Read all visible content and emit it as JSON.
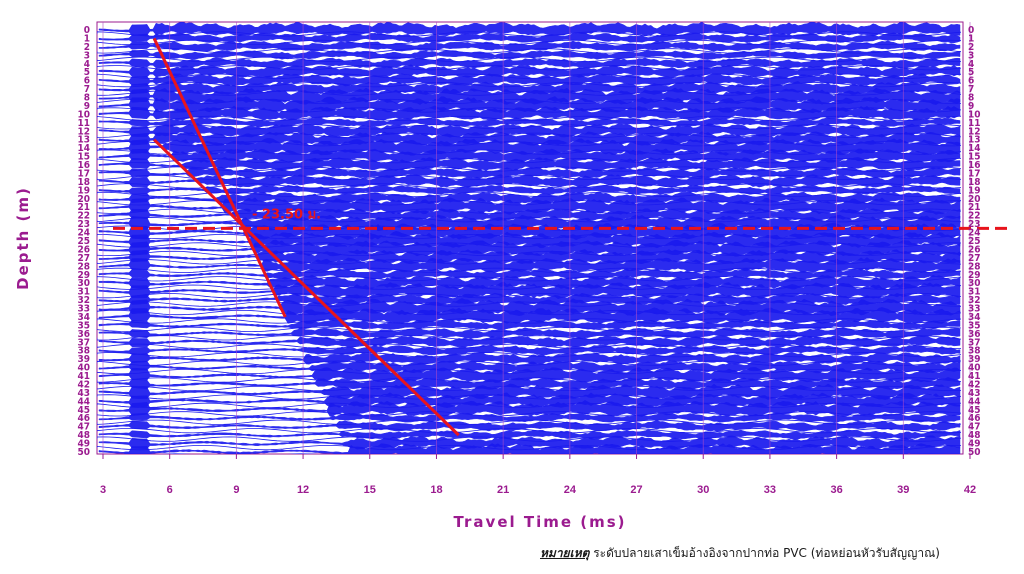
{
  "chart_data": {
    "type": "line",
    "title": "",
    "xlabel": "Travel Time (ms)",
    "ylabel": "Depth (m)",
    "xlim": [
      3,
      42
    ],
    "xticks": [
      3,
      6,
      9,
      12,
      15,
      18,
      21,
      24,
      27,
      30,
      33,
      36,
      39,
      42
    ],
    "ylim": [
      0,
      50
    ],
    "yticks": [
      0,
      1,
      2,
      3,
      4,
      5,
      6,
      7,
      8,
      9,
      10,
      11,
      12,
      13,
      14,
      15,
      16,
      17,
      18,
      19,
      20,
      21,
      22,
      23,
      24,
      25,
      26,
      27,
      28,
      29,
      30,
      31,
      32,
      33,
      34,
      35,
      36,
      37,
      38,
      39,
      40,
      41,
      42,
      43,
      44,
      45,
      46,
      47,
      48,
      49,
      50
    ],
    "grid": true,
    "trace_color": "#1a1aee",
    "trace_count": 50,
    "lines": [
      {
        "x": [
          5.3,
          11.2
        ],
        "y": [
          1.0,
          34.0
        ],
        "color": "#e8141c"
      },
      {
        "x": [
          5.3,
          19.0
        ],
        "y": [
          13.0,
          48.0
        ],
        "color": "#e8141c"
      }
    ],
    "reference_depth": {
      "value": 23.5,
      "label": "- 23.50 ม.",
      "color": "#e8141c"
    }
  },
  "note": {
    "label": "หมายเหตุ",
    "text": " ระดับปลายเสาเข็มอ้างอิงจากปากท่อ PVC (ท่อหย่อนหัวรับสัญญาณ)"
  }
}
